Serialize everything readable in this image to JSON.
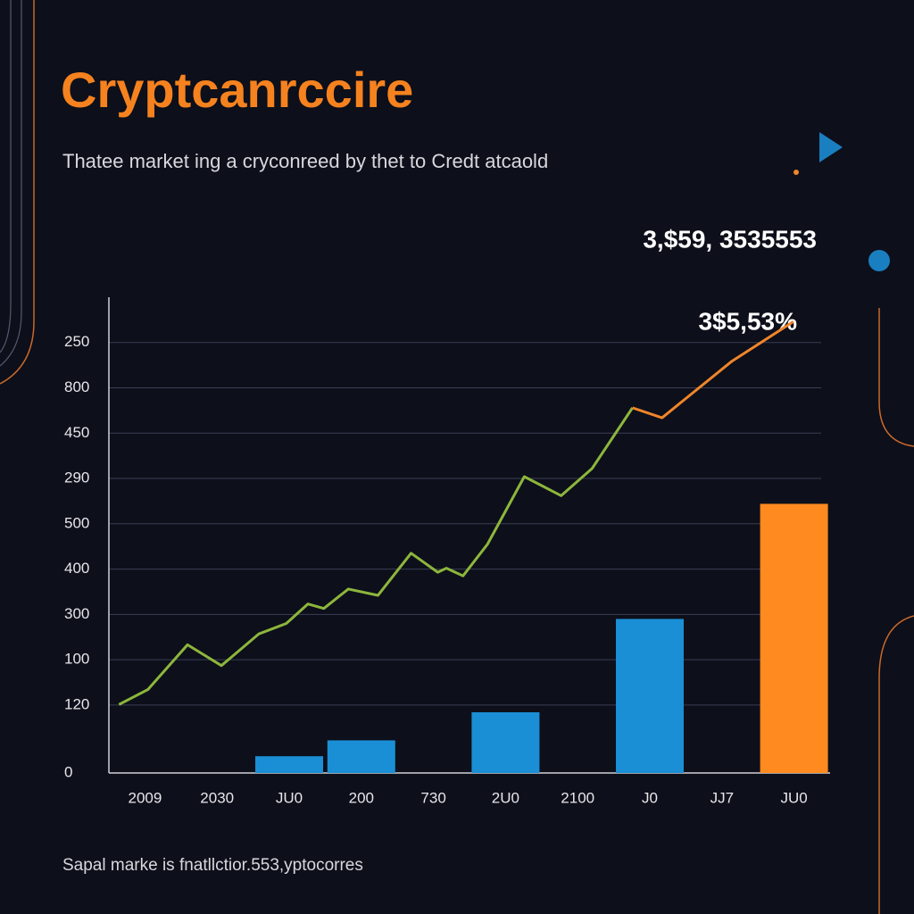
{
  "chart_data": {
    "type": "bar",
    "title": "Cryptcanrccire",
    "subtitle": "Thatee market ing a cryconreed by thet to Credt atcaold",
    "annotations": [
      "3,$59, 3535553",
      "3$5,53%"
    ],
    "footer": "Sapal marke is fnatllctior.553,yptocorres",
    "categories": [
      "2009",
      "2030",
      "JU0",
      "200",
      "730",
      "2U0",
      "2100",
      "J0",
      "JJ7",
      "JU0"
    ],
    "values": [
      null,
      null,
      0.37,
      0.72,
      null,
      1.34,
      null,
      3.4,
      null,
      5.94
    ],
    "colors": [
      null,
      null,
      "#1a8fd6",
      "#1a8fd6",
      null,
      "#1a8fd6",
      null,
      "#1a8fd6",
      null,
      "#ff8a1f"
    ],
    "lines": [
      {
        "color": "#8db63c",
        "x": [
          -0.36,
          0.04,
          0.59,
          1.06,
          1.58,
          1.96,
          2.26,
          2.48,
          2.82,
          3.23,
          3.69,
          4.06,
          4.18,
          4.41,
          4.75,
          5.26,
          5.77,
          6.2,
          6.76
        ],
        "values": [
          1.51,
          1.84,
          2.83,
          2.37,
          3.07,
          3.3,
          3.73,
          3.63,
          4.06,
          3.92,
          4.85,
          4.43,
          4.52,
          4.35,
          5.05,
          6.54,
          6.12,
          6.72,
          8.06
        ]
      },
      {
        "color": "#f0852a",
        "x": [
          6.76,
          7.17,
          8.14,
          8.99
        ],
        "values": [
          8.06,
          7.84,
          9.09,
          9.96
        ]
      }
    ],
    "xlim": [
      -0.5,
      9.5
    ],
    "ylim": [
      0,
      10.5
    ],
    "yticks": [
      0,
      {
        "value": 1.5,
        "label": "120"
      },
      {
        "value": 2.5,
        "label": "100"
      },
      {
        "value": 3.5,
        "label": "300"
      },
      {
        "value": 4.5,
        "label": "400"
      },
      {
        "value": 5.5,
        "label": "500"
      },
      {
        "value": 6.5,
        "label": "290"
      },
      {
        "value": 7.5,
        "label": "450"
      },
      {
        "value": 8.5,
        "label": "800"
      },
      {
        "value": 9.5,
        "label": "250"
      }
    ],
    "grid": true
  }
}
